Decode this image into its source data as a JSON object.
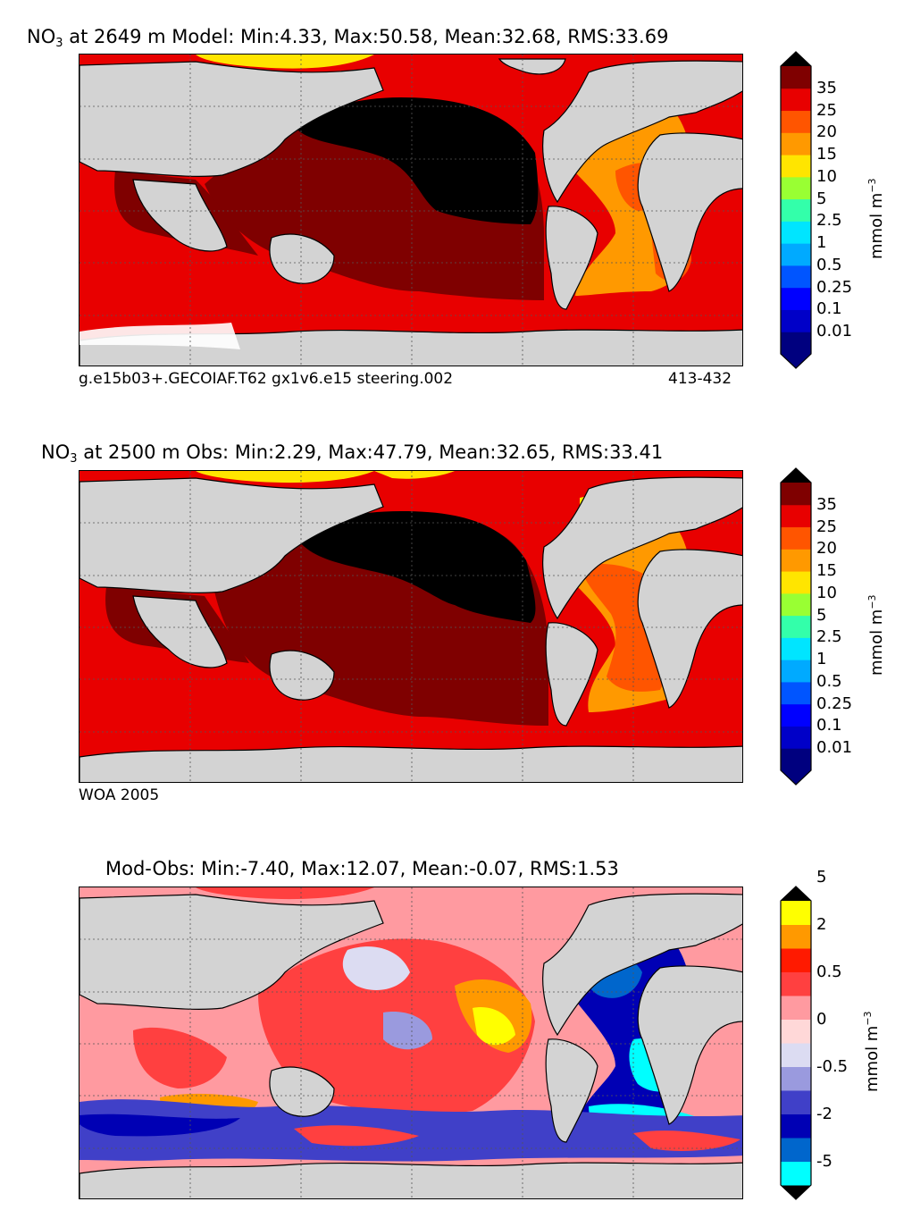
{
  "panels": [
    {
      "title_prefix": "NO",
      "title_sub": "3",
      "title_rest": " at 2649 m Model: Min:4.33, Max:50.58, Mean:32.68, RMS:33.69",
      "caption_left": "g.e15b03+.GECOIAF.T62 gx1v6.e15 steering.002",
      "caption_right": "413-432",
      "units": "mmol m",
      "units_exp": "−3",
      "colorbar": {
        "levels": [
          "0.01",
          "0.1",
          "0.25",
          "0.5",
          "1",
          "2.5",
          "5",
          "10",
          "15",
          "20",
          "25",
          "35"
        ],
        "colors": [
          "#00007f",
          "#0000c8",
          "#0000ff",
          "#0055ff",
          "#00aaff",
          "#00e5ff",
          "#33ffaa",
          "#99ff33",
          "#ffe500",
          "#ff9900",
          "#ff5500",
          "#e80000",
          "#7f0000"
        ],
        "over_color": "#000000"
      }
    },
    {
      "title_prefix": "NO",
      "title_sub": "3",
      "title_rest": " at 2500 m Obs: Min:2.29, Max:47.79, Mean:32.65, RMS:33.41",
      "caption_left": "WOA 2005",
      "caption_right": "",
      "units": "mmol m",
      "units_exp": "−3",
      "colorbar": {
        "levels": [
          "0.01",
          "0.1",
          "0.25",
          "0.5",
          "1",
          "2.5",
          "5",
          "10",
          "15",
          "20",
          "25",
          "35"
        ],
        "colors": [
          "#00007f",
          "#0000c8",
          "#0000ff",
          "#0055ff",
          "#00aaff",
          "#00e5ff",
          "#33ffaa",
          "#99ff33",
          "#ffe500",
          "#ff9900",
          "#ff5500",
          "#e80000",
          "#7f0000"
        ],
        "over_color": "#000000"
      }
    },
    {
      "title_prefix": "",
      "title_sub": "",
      "title_rest": "Mod-Obs: Min:-7.40, Max:12.07, Mean:-0.07, RMS:1.53",
      "caption_left": "",
      "caption_right": "",
      "units": "mmol m",
      "units_exp": "−3",
      "colorbar": {
        "levels": [
          "-5",
          "-2",
          "-0.5",
          "0",
          "0.5",
          "2",
          "5"
        ],
        "colors": [
          "#00ffff",
          "#0066cc",
          "#0000b4",
          "#4040c8",
          "#9a9ade",
          "#dcdcf2",
          "#ffd8d8",
          "#ff9aa0",
          "#ff4040",
          "#ff1a00",
          "#ff9900",
          "#ffff00"
        ],
        "label_every": 2,
        "under_color": "#000000",
        "over_color": "#000000"
      }
    }
  ],
  "map_colors": {
    "land": "#d3d3d3",
    "ice": "#ffffff"
  }
}
